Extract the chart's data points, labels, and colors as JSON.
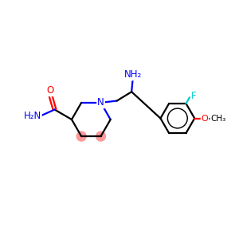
{
  "background_color": "#ffffff",
  "bond_color": "#000000",
  "nitrogen_color": "#0000ff",
  "oxygen_color": "#ff0000",
  "fluorine_color": "#00cccc",
  "highlight_color": "#ff9999",
  "figsize": [
    3.0,
    3.0
  ],
  "dpi": 100,
  "xlim": [
    0,
    10
  ],
  "ylim": [
    0,
    10
  ],
  "lw": 1.6,
  "fs": 8.5,
  "ring_r": 0.82,
  "benz_r": 0.72,
  "circ_r": 0.2
}
